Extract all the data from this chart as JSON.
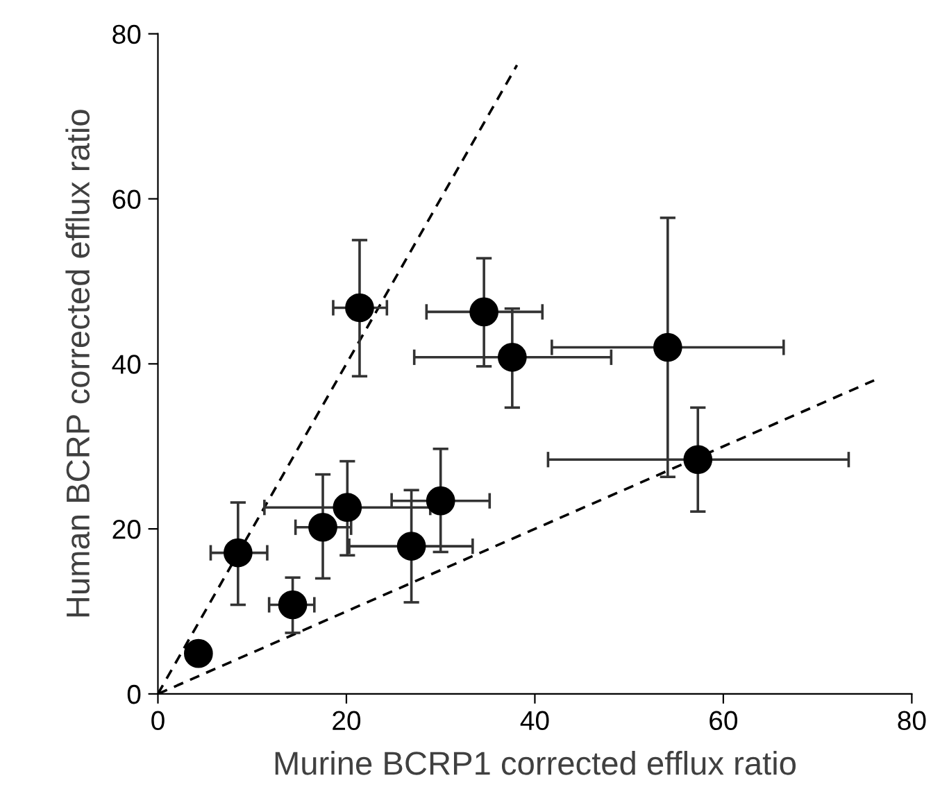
{
  "chart_data": {
    "type": "scatter",
    "xlabel": "Murine BCRP1 corrected efflux ratio",
    "ylabel": "Human BCRP corrected efflux ratio",
    "xlim": [
      0,
      80
    ],
    "ylim": [
      0,
      80
    ],
    "xticks": [
      0,
      20,
      40,
      60,
      80
    ],
    "yticks": [
      0,
      20,
      40,
      60,
      80
    ],
    "grid": false,
    "series": [
      {
        "color": "#000000",
        "marker": "circle",
        "x": [
          4.3,
          8.5,
          14.3,
          17.5,
          20.1,
          26.9,
          30.0,
          21.4,
          34.6,
          37.6,
          54.1,
          57.3
        ],
        "values": [
          4.9,
          17.1,
          10.8,
          20.2,
          22.6,
          17.9,
          23.4,
          46.8,
          46.3,
          40.8,
          42.0,
          28.4
        ],
        "errors": [
          null,
          [
            10.8,
            23.2
          ],
          [
            7.4,
            14.1
          ],
          [
            14.0,
            26.6
          ],
          [
            16.8,
            28.2
          ],
          [
            11.1,
            24.7
          ],
          [
            17.2,
            29.7
          ],
          [
            38.5,
            55.0
          ],
          [
            39.7,
            52.8
          ],
          [
            34.7,
            46.7
          ],
          [
            26.3,
            57.7
          ],
          [
            22.1,
            34.7
          ]
        ],
        "xerrors": [
          null,
          [
            5.6,
            11.6
          ],
          [
            11.8,
            16.6
          ],
          [
            14.6,
            20.5
          ],
          [
            11.3,
            28.9
          ],
          [
            20.3,
            33.4
          ],
          [
            24.8,
            35.2
          ],
          [
            18.6,
            24.3
          ],
          [
            28.5,
            40.8
          ],
          [
            27.2,
            48.1
          ],
          [
            41.8,
            66.4
          ],
          [
            41.4,
            73.3
          ]
        ]
      },
      {
        "type": "line",
        "color": "#000000",
        "line_style": "dashed",
        "marker": "none",
        "x": [
          0,
          38.1
        ],
        "values": [
          0,
          76.2
        ]
      },
      {
        "type": "line",
        "color": "#000000",
        "line_style": "dashed",
        "marker": "none",
        "x": [
          0,
          76.0
        ],
        "values": [
          0,
          38.0
        ]
      }
    ]
  }
}
